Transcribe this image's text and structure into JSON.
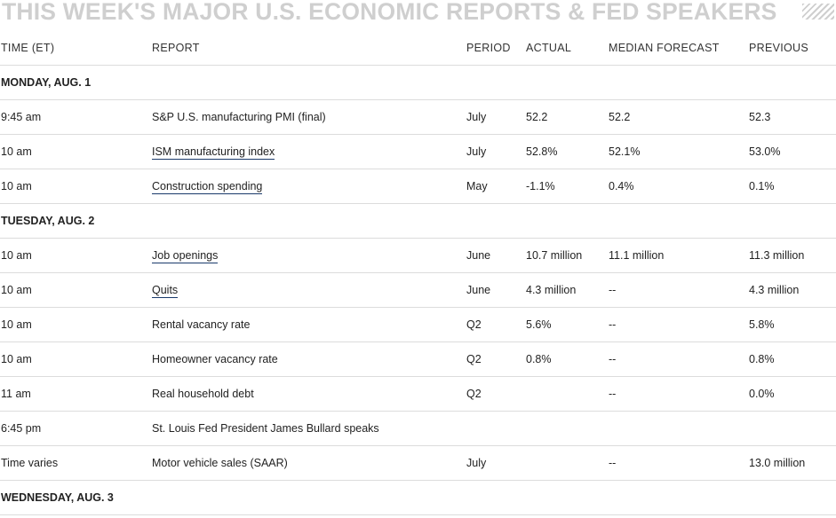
{
  "title": "THIS WEEK'S MAJOR U.S. ECONOMIC REPORTS & FED SPEAKERS",
  "columns": [
    "TIME (ET)",
    "REPORT",
    "PERIOD",
    "ACTUAL",
    "MEDIAN FORECAST",
    "PREVIOUS"
  ],
  "sections": [
    {
      "day": "MONDAY, AUG. 1",
      "rows": [
        {
          "time": "9:45 am",
          "report": "S&P U.S. manufacturing PMI (final)",
          "link": false,
          "period": "July",
          "actual": "52.2",
          "forecast": "52.2",
          "previous": "52.3"
        },
        {
          "time": "10 am",
          "report": "ISM manufacturing index",
          "link": true,
          "period": "July",
          "actual": "52.8%",
          "forecast": "52.1%",
          "previous": "53.0%"
        },
        {
          "time": "10 am",
          "report": "Construction spending",
          "link": true,
          "period": "May",
          "actual": "-1.1%",
          "forecast": "0.4%",
          "previous": "0.1%"
        }
      ]
    },
    {
      "day": "TUESDAY, AUG. 2",
      "rows": [
        {
          "time": "10 am",
          "report": "Job openings",
          "link": true,
          "period": "June",
          "actual": "10.7 million",
          "forecast": "11.1 million",
          "previous": "11.3 million"
        },
        {
          "time": "10 am",
          "report": "Quits",
          "link": true,
          "period": "June",
          "actual": "4.3 million",
          "forecast": "--",
          "previous": "4.3 million"
        },
        {
          "time": "10 am",
          "report": "Rental vacancy rate",
          "link": false,
          "period": "Q2",
          "actual": "5.6%",
          "forecast": "--",
          "previous": "5.8%"
        },
        {
          "time": "10 am",
          "report": "Homeowner vacancy rate",
          "link": false,
          "period": "Q2",
          "actual": "0.8%",
          "forecast": "--",
          "previous": "0.8%"
        },
        {
          "time": "11 am",
          "report": "Real household debt",
          "link": false,
          "period": "Q2",
          "actual": "",
          "forecast": "--",
          "previous": "0.0%"
        },
        {
          "time": "6:45 pm",
          "report": "St. Louis Fed President James Bullard speaks",
          "link": false,
          "period": "",
          "actual": "",
          "forecast": "",
          "previous": ""
        },
        {
          "time": "Time varies",
          "report": "Motor vehicle sales (SAAR)",
          "link": false,
          "period": "July",
          "actual": "",
          "forecast": "--",
          "previous": "13.0 million"
        }
      ]
    },
    {
      "day": "WEDNESDAY, AUG. 3",
      "rows": []
    }
  ]
}
